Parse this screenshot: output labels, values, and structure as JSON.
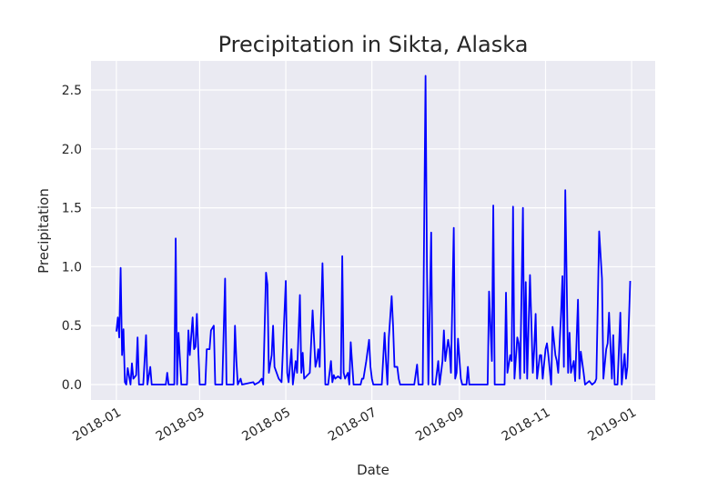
{
  "chart_data": {
    "type": "line",
    "title": "Precipitation in Sikta, Alaska",
    "x_label": "Date",
    "y_label": "Precipitation",
    "color": "#0000ff",
    "grid": true,
    "x": [
      0,
      1,
      2,
      3,
      4,
      5,
      6,
      7,
      8,
      10,
      11,
      12,
      14,
      15,
      16,
      19,
      21,
      22,
      24,
      25,
      35,
      36,
      37,
      41,
      42,
      43,
      44,
      46,
      50,
      51,
      52,
      54,
      55,
      56,
      57,
      59,
      63,
      64,
      66,
      67,
      69,
      70,
      75,
      77,
      78,
      83,
      84,
      85,
      86,
      88,
      89,
      97,
      98,
      101,
      103,
      104,
      106,
      107,
      108,
      110,
      111,
      112,
      115,
      117,
      120,
      121,
      122,
      124,
      125,
      127,
      128,
      130,
      131,
      132,
      133,
      137,
      139,
      141,
      142,
      143,
      144,
      146,
      148,
      150,
      152,
      153,
      154,
      155,
      157,
      159,
      160,
      161,
      162,
      164,
      165,
      166,
      168,
      173,
      174,
      175,
      177,
      179,
      180,
      181,
      182,
      188,
      190,
      191,
      192,
      193,
      195,
      196,
      197,
      199,
      200,
      201,
      211,
      213,
      214,
      217,
      219,
      220,
      221,
      223,
      224,
      226,
      228,
      229,
      231,
      232,
      233,
      235,
      236,
      237,
      239,
      240,
      241,
      242,
      244,
      245,
      248,
      249,
      250,
      263,
      264,
      266,
      267,
      268,
      275,
      276,
      277,
      279,
      280,
      281,
      282,
      284,
      285,
      286,
      288,
      289,
      290,
      291,
      293,
      295,
      296,
      297,
      298,
      300,
      301,
      302,
      304,
      305,
      306,
      308,
      309,
      311,
      312,
      313,
      315,
      316,
      317,
      318,
      320,
      321,
      322,
      324,
      325,
      327,
      328,
      329,
      331,
      332,
      334,
      335,
      337,
      339,
      340,
      342,
      344,
      345,
      347,
      348,
      349,
      351,
      352,
      353,
      355,
      357,
      358,
      360,
      361,
      362,
      364
    ],
    "values": [
      0.45,
      0.57,
      0.4,
      0.99,
      0.25,
      0.47,
      0.02,
      0.0,
      0.14,
      0.0,
      0.18,
      0.05,
      0.08,
      0.4,
      0.0,
      0.0,
      0.42,
      0.0,
      0.15,
      0.0,
      0.0,
      0.1,
      0.0,
      0.0,
      1.24,
      0.0,
      0.44,
      0.0,
      0.0,
      0.46,
      0.25,
      0.57,
      0.3,
      0.32,
      0.6,
      0.0,
      0.0,
      0.3,
      0.3,
      0.46,
      0.5,
      0.0,
      0.0,
      0.9,
      0.0,
      0.0,
      0.5,
      0.2,
      0.0,
      0.05,
      0.0,
      0.02,
      0.0,
      0.02,
      0.05,
      0.0,
      0.95,
      0.85,
      0.1,
      0.25,
      0.5,
      0.15,
      0.05,
      0.02,
      0.88,
      0.1,
      0.02,
      0.3,
      0.0,
      0.2,
      0.1,
      0.76,
      0.1,
      0.27,
      0.05,
      0.1,
      0.63,
      0.15,
      0.2,
      0.3,
      0.15,
      1.03,
      0.0,
      0.0,
      0.2,
      0.02,
      0.08,
      0.05,
      0.07,
      0.05,
      1.09,
      0.1,
      0.05,
      0.1,
      0.0,
      0.36,
      0.0,
      0.0,
      0.05,
      0.05,
      0.2,
      0.38,
      0.15,
      0.05,
      0.0,
      0.0,
      0.44,
      0.2,
      0.0,
      0.4,
      0.75,
      0.5,
      0.15,
      0.15,
      0.05,
      0.0,
      0.0,
      0.17,
      0.0,
      0.0,
      2.62,
      1.0,
      0.0,
      1.29,
      0.0,
      0.0,
      0.2,
      0.0,
      0.2,
      0.46,
      0.2,
      0.38,
      0.3,
      0.1,
      1.33,
      0.05,
      0.1,
      0.39,
      0.05,
      0.0,
      0.0,
      0.15,
      0.0,
      0.0,
      0.79,
      0.2,
      1.52,
      0.0,
      0.0,
      0.78,
      0.1,
      0.25,
      0.2,
      1.51,
      0.05,
      0.4,
      0.35,
      0.05,
      1.5,
      0.1,
      0.87,
      0.05,
      0.93,
      0.1,
      0.3,
      0.6,
      0.05,
      0.25,
      0.25,
      0.05,
      0.3,
      0.35,
      0.25,
      0.0,
      0.49,
      0.25,
      0.2,
      0.1,
      0.6,
      0.92,
      0.15,
      1.65,
      0.1,
      0.44,
      0.1,
      0.2,
      0.03,
      0.72,
      0.05,
      0.28,
      0.1,
      0.0,
      0.02,
      0.03,
      0.0,
      0.02,
      0.05,
      1.3,
      0.9,
      0.05,
      0.3,
      0.35,
      0.61,
      0.05,
      0.42,
      0.0,
      0.0,
      0.61,
      0.0,
      0.26,
      0.05,
      0.15,
      0.88
    ],
    "xlim": [
      -18,
      381.7
    ],
    "xticks": [
      {
        "value": 0,
        "label": "2018-01"
      },
      {
        "value": 59,
        "label": "2018-03"
      },
      {
        "value": 120,
        "label": "2018-05"
      },
      {
        "value": 181,
        "label": "2018-07"
      },
      {
        "value": 243,
        "label": "2018-09"
      },
      {
        "value": 304,
        "label": "2018-11"
      },
      {
        "value": 365,
        "label": "2019-01"
      }
    ],
    "ylim": [
      -0.131,
      2.747
    ],
    "yticks": [
      {
        "value": 0,
        "label": "0.0"
      },
      0.5,
      {
        "value": 1,
        "label": "1.0"
      },
      1.5,
      {
        "value": 2,
        "label": "2.0"
      },
      2.5
    ]
  }
}
